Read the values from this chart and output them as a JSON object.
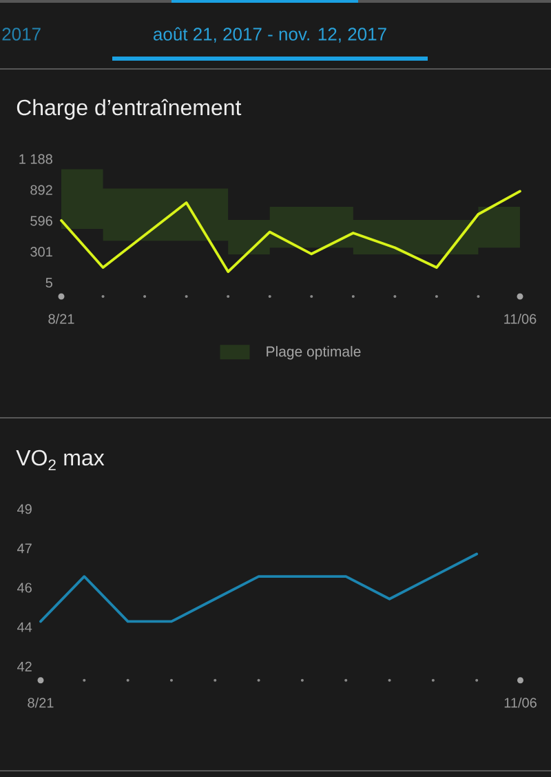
{
  "chart_data": [
    {
      "type": "line",
      "title": "Charge d’entraînement",
      "subtitle": "août 21, 2017 - nov. 12, 2017",
      "annotations": [
        "2017"
      ],
      "categories": [
        "8/21",
        null,
        null,
        null,
        null,
        null,
        null,
        null,
        null,
        null,
        null,
        "11/06"
      ],
      "series": [
        {
          "type": "step",
          "name": "Plage optimale",
          "color": "#26361c",
          "values": [
            null,
            null,
            null,
            null,
            null,
            null,
            null,
            null,
            null,
            null,
            null,
            null
          ],
          "lower": [
            520,
            405,
            405,
            405,
            275,
            340,
            340,
            275,
            275,
            275,
            340,
            340
          ],
          "upper": [
            1090,
            905,
            905,
            905,
            605,
            730,
            730,
            605,
            605,
            605,
            730,
            730
          ]
        },
        {
          "color": "#d8f31a",
          "values": [
            600,
            150,
            460,
            770,
            110,
            490,
            280,
            480,
            340,
            150,
            660,
            880
          ]
        }
      ],
      "ylim": [
        5,
        1188
      ],
      "yticks": [
        5,
        {
          "value": 300.75,
          "label": "301"
        },
        {
          "value": 596.5,
          "label": "596"
        },
        {
          "value": 892.25,
          "label": "892"
        },
        {
          "value": 1188,
          "label": "1 188"
        }
      ],
      "legend": "bottom"
    },
    {
      "type": "line",
      "title": "VO$_{2}$ max",
      "categories": [
        "8/21",
        null,
        null,
        null,
        null,
        null,
        null,
        null,
        null,
        null,
        null,
        "11/06"
      ],
      "color": "#1c85b0",
      "values": [
        44,
        46,
        44,
        44,
        45,
        46,
        46,
        46,
        45,
        46,
        47,
        null
      ],
      "ylim": [
        42,
        49
      ],
      "yticks": [
        42,
        {
          "value": 43.75,
          "label": "44"
        },
        {
          "value": 45.5,
          "label": "46"
        },
        {
          "value": 47.25,
          "label": "47"
        },
        49
      ]
    }
  ]
}
